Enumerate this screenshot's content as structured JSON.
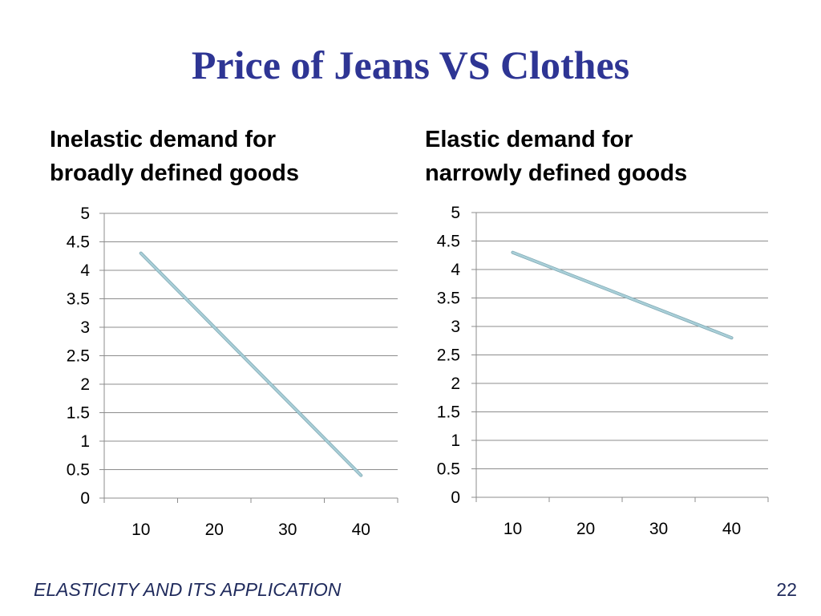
{
  "slide": {
    "title": "Price of Jeans VS Clothes",
    "footer": "ELASTICITY AND ITS APPLICATION",
    "page_number": "22"
  },
  "colors": {
    "title": "#2e3594",
    "line": "#a9cfd8",
    "grid": "#8c8c8c"
  },
  "chart_data": [
    {
      "type": "line",
      "title_lines": [
        "Inelastic demand for",
        "broadly defined goods"
      ],
      "categories": [
        "10",
        "20",
        "30",
        "40"
      ],
      "y_ticks": [
        "0",
        "0.5",
        "1",
        "1.5",
        "2",
        "2.5",
        "3",
        "3.5",
        "4",
        "4.5",
        "5"
      ],
      "ylim": [
        0,
        5
      ],
      "grid": true,
      "legend": "none",
      "series": [
        {
          "x": [
            10,
            40
          ],
          "values": [
            4.3,
            0.4
          ]
        }
      ]
    },
    {
      "type": "line",
      "title_lines": [
        "Elastic demand for",
        "narrowly defined goods"
      ],
      "categories": [
        "10",
        "20",
        "30",
        "40"
      ],
      "y_ticks": [
        "0",
        "0.5",
        "1",
        "1.5",
        "2",
        "2.5",
        "3",
        "3.5",
        "4",
        "4.5",
        "5"
      ],
      "ylim": [
        0,
        5
      ],
      "grid": true,
      "legend": "none",
      "series": [
        {
          "x": [
            10,
            40
          ],
          "values": [
            4.3,
            2.8
          ]
        }
      ]
    }
  ]
}
